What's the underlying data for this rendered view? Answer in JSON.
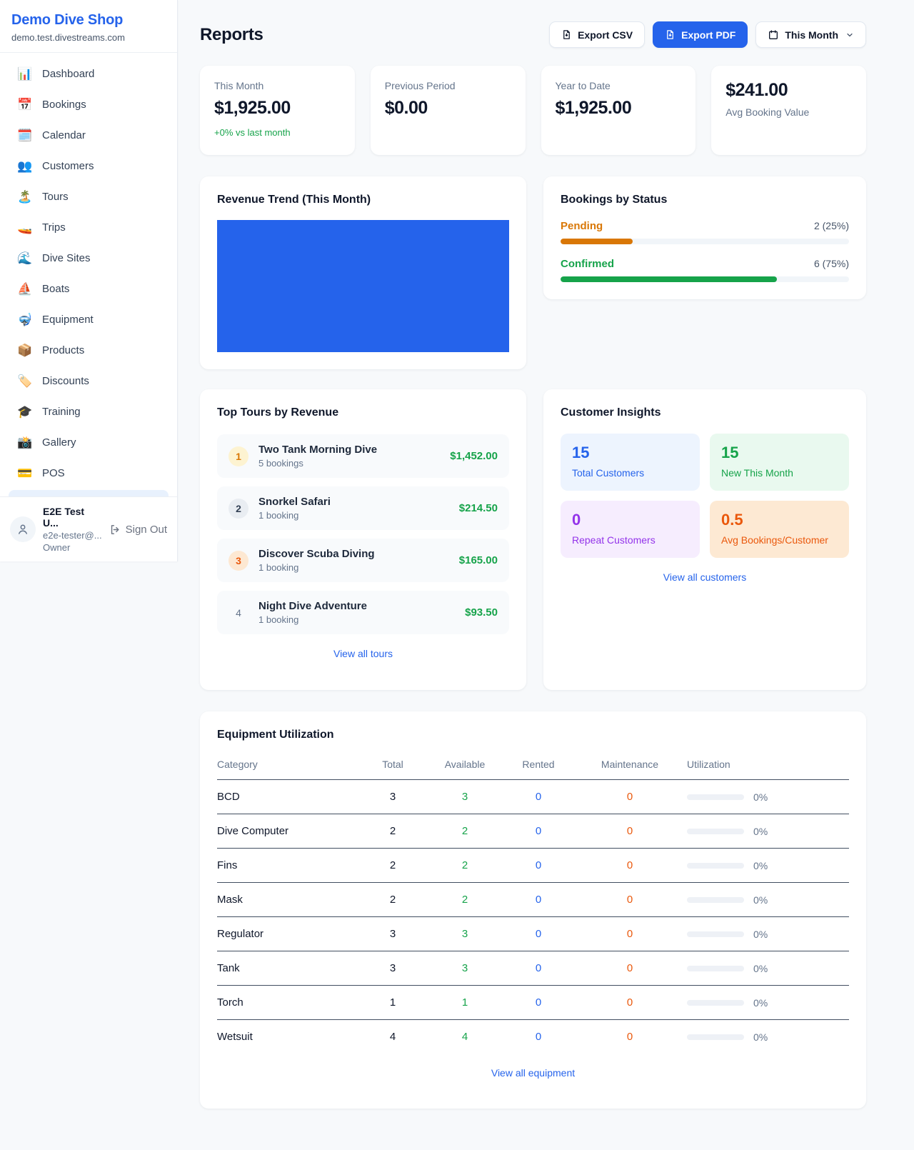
{
  "brand": {
    "name": "Demo Dive Shop",
    "domain": "demo.test.divestreams.com"
  },
  "sidebar": {
    "items": [
      {
        "icon": "📊",
        "icon_name": "bar-chart-icon",
        "label": "Dashboard"
      },
      {
        "icon": "📅",
        "icon_name": "calendar-date-icon",
        "label": "Bookings"
      },
      {
        "icon": "🗓️",
        "icon_name": "spiral-calendar-icon",
        "label": "Calendar"
      },
      {
        "icon": "👥",
        "icon_name": "people-icon",
        "label": "Customers"
      },
      {
        "icon": "🏝️",
        "icon_name": "island-icon",
        "label": "Tours"
      },
      {
        "icon": "🚤",
        "icon_name": "speedboat-icon",
        "label": "Trips"
      },
      {
        "icon": "🌊",
        "icon_name": "wave-icon",
        "label": "Dive Sites"
      },
      {
        "icon": "⛵",
        "icon_name": "sailboat-icon",
        "label": "Boats"
      },
      {
        "icon": "🤿",
        "icon_name": "diving-mask-icon",
        "label": "Equipment"
      },
      {
        "icon": "📦",
        "icon_name": "package-icon",
        "label": "Products"
      },
      {
        "icon": "🏷️",
        "icon_name": "tag-icon",
        "label": "Discounts"
      },
      {
        "icon": "🎓",
        "icon_name": "graduation-cap-icon",
        "label": "Training"
      },
      {
        "icon": "📸",
        "icon_name": "camera-flash-icon",
        "label": "Gallery"
      },
      {
        "icon": "💳",
        "icon_name": "credit-card-icon",
        "label": "POS"
      }
    ]
  },
  "user": {
    "name": "E2E Test U...",
    "email": "e2e-tester@...",
    "role": "Owner",
    "signout_label": "Sign Out"
  },
  "header": {
    "title": "Reports",
    "export_csv_label": "Export CSV",
    "export_pdf_label": "Export PDF",
    "period_label": "This Month"
  },
  "stats": {
    "cards": [
      {
        "label": "This Month",
        "value": "$1,925.00",
        "delta": "+0% vs last month"
      },
      {
        "label": "Previous Period",
        "value": "$0.00"
      },
      {
        "label": "Year to Date",
        "value": "$1,925.00"
      },
      {
        "label": "Avg Booking Value",
        "value": "$241.00"
      }
    ]
  },
  "revenue_trend": {
    "title": "Revenue Trend (This Month)"
  },
  "bookings_by_status": {
    "title": "Bookings by Status",
    "rows": [
      {
        "label": "Pending",
        "count": "2 (25%)",
        "pct": 25,
        "color": "#d97706"
      },
      {
        "label": "Confirmed",
        "count": "6 (75%)",
        "pct": 75,
        "color": "#16a34a"
      }
    ]
  },
  "top_tours": {
    "title": "Top Tours by Revenue",
    "link": "View all tours",
    "items": [
      {
        "rank": "1",
        "name": "Two Tank Morning Dive",
        "bookings": "5 bookings",
        "amount": "$1,452.00"
      },
      {
        "rank": "2",
        "name": "Snorkel Safari",
        "bookings": "1 booking",
        "amount": "$214.50"
      },
      {
        "rank": "3",
        "name": "Discover Scuba Diving",
        "bookings": "1 booking",
        "amount": "$165.00"
      },
      {
        "rank": "4",
        "name": "Night Dive Adventure",
        "bookings": "1 booking",
        "amount": "$93.50"
      }
    ]
  },
  "customer_insights": {
    "title": "Customer Insights",
    "link": "View all customers",
    "tiles": [
      {
        "value": "15",
        "label": "Total Customers"
      },
      {
        "value": "15",
        "label": "New This Month"
      },
      {
        "value": "0",
        "label": "Repeat Customers"
      },
      {
        "value": "0.5",
        "label": "Avg Bookings/Customer"
      }
    ]
  },
  "equipment": {
    "title": "Equipment Utilization",
    "link": "View all equipment",
    "columns": [
      "Category",
      "Total",
      "Available",
      "Rented",
      "Maintenance",
      "Utilization"
    ],
    "rows": [
      {
        "category": "BCD",
        "total": "3",
        "available": "3",
        "rented": "0",
        "maintenance": "0",
        "utilization": "0%"
      },
      {
        "category": "Dive Computer",
        "total": "2",
        "available": "2",
        "rented": "0",
        "maintenance": "0",
        "utilization": "0%"
      },
      {
        "category": "Fins",
        "total": "2",
        "available": "2",
        "rented": "0",
        "maintenance": "0",
        "utilization": "0%"
      },
      {
        "category": "Mask",
        "total": "2",
        "available": "2",
        "rented": "0",
        "maintenance": "0",
        "utilization": "0%"
      },
      {
        "category": "Regulator",
        "total": "3",
        "available": "3",
        "rented": "0",
        "maintenance": "0",
        "utilization": "0%"
      },
      {
        "category": "Tank",
        "total": "3",
        "available": "3",
        "rented": "0",
        "maintenance": "0",
        "utilization": "0%"
      },
      {
        "category": "Torch",
        "total": "1",
        "available": "1",
        "rented": "0",
        "maintenance": "0",
        "utilization": "0%"
      },
      {
        "category": "Wetsuit",
        "total": "4",
        "available": "4",
        "rented": "0",
        "maintenance": "0",
        "utilization": "0%"
      }
    ]
  },
  "colors": {
    "accent": "#2563eb",
    "green": "#16a34a",
    "amber": "#d97706",
    "deep_orange": "#ea580c",
    "purple": "#9333ea",
    "revenue_bar": "#2563eb",
    "page_bg": "#f7f9fb"
  }
}
